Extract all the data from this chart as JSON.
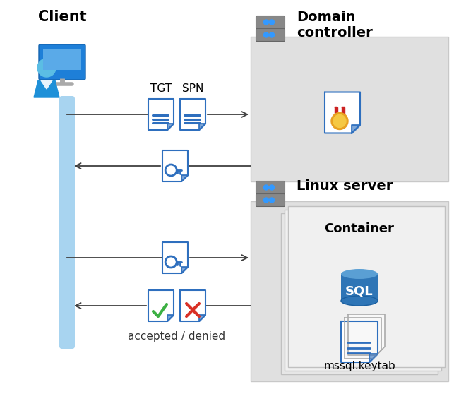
{
  "bg_color": "#ffffff",
  "client_label": "Client",
  "domain_label": "Domain\ncontroller",
  "linux_label": "Linux server",
  "container_label": "Container",
  "tgt_label": "TGT",
  "spn_label": "SPN",
  "accepted_denied_label": "accepted / denied",
  "mssql_keytab_label": "mssql.keytab",
  "sql_label": "SQL",
  "arrow_color": "#404040",
  "line_color": "#404040",
  "blue_bar_color": "#a8d4f0",
  "box_fill": "#e0e0e0",
  "box_edge": "#c8c8c8",
  "doc_border": "#2e6fbe",
  "doc_fill": "#ffffff",
  "doc_fold_color": "#4a90d9",
  "doc_line_color": "#2e6fbe",
  "sql_bg_top": "#5a9fd4",
  "sql_bg_mid": "#2e75b6",
  "sql_text": "#ffffff",
  "check_green": "#3cb043",
  "cross_red": "#d93025",
  "server_body": "#888888",
  "server_stripe": "#666666",
  "server_led": "#3399ff",
  "person_blue": "#1e90d8",
  "person_light": "#5bbde4",
  "monitor_dark": "#1a6fad",
  "monitor_stand": "#aaaaaa",
  "cert_ribbon": "#cc2222",
  "cert_gold": "#e8a020",
  "cert_gold2": "#f5c842"
}
